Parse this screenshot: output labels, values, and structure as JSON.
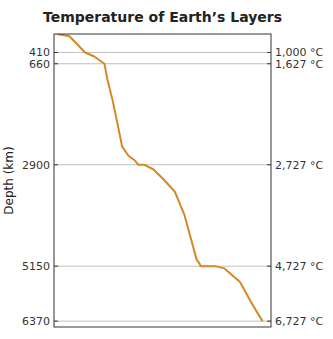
{
  "chart_data": {
    "type": "line",
    "title": "Temperature of Earth’s Layers",
    "y_label": "Depth (km)",
    "x": [
      100,
      500,
      1000,
      1000,
      1300,
      1627,
      1627,
      1720,
      1900,
      2050,
      2200,
      2400,
      2600,
      2680,
      2727,
      2900,
      3200,
      3500,
      3900,
      4200,
      4400,
      4600,
      4700,
      4727,
      5200,
      5500,
      6000,
      6400,
      6727
    ],
    "values": [
      0,
      50,
      410,
      410,
      500,
      660,
      660,
      1000,
      1500,
      2000,
      2500,
      2700,
      2800,
      2870,
      2900,
      2900,
      3000,
      3200,
      3500,
      4000,
      4500,
      5000,
      5100,
      5150,
      5150,
      5200,
      5500,
      6000,
      6370
    ],
    "color": "#D4882A",
    "xlim": [
      0,
      7000
    ],
    "ylim": [
      6500,
      0
    ],
    "yticks": [
      410,
      660,
      2900,
      5150,
      6370
    ],
    "y2lim": [
      6500,
      0
    ],
    "y2ticks": [
      {
        "value": 410,
        "label": "1,000 °C"
      },
      {
        "value": 660,
        "label": "1,627 °C"
      },
      {
        "value": 2900,
        "label": "2,727 °C"
      },
      {
        "value": 5150,
        "label": "4,727 °C"
      },
      {
        "value": 6370,
        "label": "6,727 °C"
      }
    ],
    "grid": true,
    "tick_labels": "y"
  }
}
